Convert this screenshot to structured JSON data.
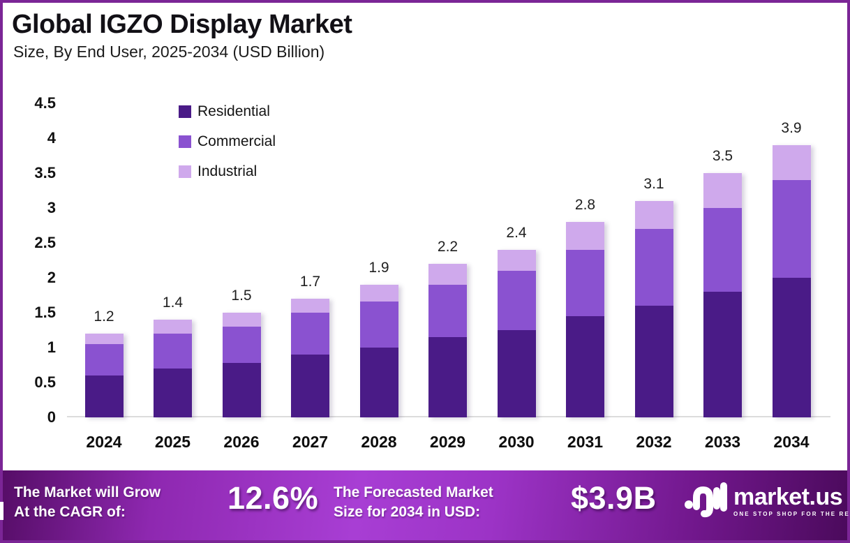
{
  "frame": {
    "border_color": "#7b2596"
  },
  "header": {
    "title": "Global IGZO Display Market",
    "subtitle": "Size, By End User, 2025-2034 (USD Billion)"
  },
  "chart_data": {
    "type": "bar",
    "stacked": true,
    "title": "Global IGZO Display Market Size, By End User, 2025-2034 (USD Billion)",
    "xlabel": "",
    "ylabel": "",
    "ylim": [
      0,
      4.5
    ],
    "yticks": [
      0,
      0.5,
      1,
      1.5,
      2,
      2.5,
      3,
      3.5,
      4,
      4.5
    ],
    "ytick_labels": [
      "0",
      "0.5",
      "1",
      "1.5",
      "2",
      "2.5",
      "3",
      "3.5",
      "4",
      "4.5"
    ],
    "grid": false,
    "legend_position": "top-left-inside",
    "categories": [
      "2024",
      "2025",
      "2026",
      "2027",
      "2028",
      "2029",
      "2030",
      "2031",
      "2032",
      "2033",
      "2034"
    ],
    "series": [
      {
        "name": "Residential",
        "color": "#4a1b87",
        "values": [
          0.6,
          0.7,
          0.78,
          0.9,
          1.0,
          1.15,
          1.25,
          1.45,
          1.6,
          1.8,
          2.0
        ]
      },
      {
        "name": "Commercial",
        "color": "#8a52d0",
        "values": [
          0.45,
          0.5,
          0.52,
          0.6,
          0.66,
          0.75,
          0.85,
          0.95,
          1.1,
          1.2,
          1.4
        ]
      },
      {
        "name": "Industrial",
        "color": "#cfa9ec",
        "values": [
          0.15,
          0.2,
          0.2,
          0.2,
          0.24,
          0.3,
          0.3,
          0.4,
          0.4,
          0.5,
          0.5
        ]
      }
    ],
    "totals": [
      "1.2",
      "1.4",
      "1.5",
      "1.7",
      "1.9",
      "2.2",
      "2.4",
      "2.8",
      "3.1",
      "3.5",
      "3.9"
    ]
  },
  "footer": {
    "cagr_label_line1": "The Market will Grow",
    "cagr_label_line2": "At the CAGR of:",
    "cagr_value": "12.6%",
    "forecast_label_line1": "The Forecasted Market",
    "forecast_label_line2": "Size for 2034 in USD:",
    "forecast_value": "$3.9B",
    "brand": {
      "name": "market.us",
      "tagline": "ONE STOP SHOP FOR THE REPORTS"
    }
  }
}
